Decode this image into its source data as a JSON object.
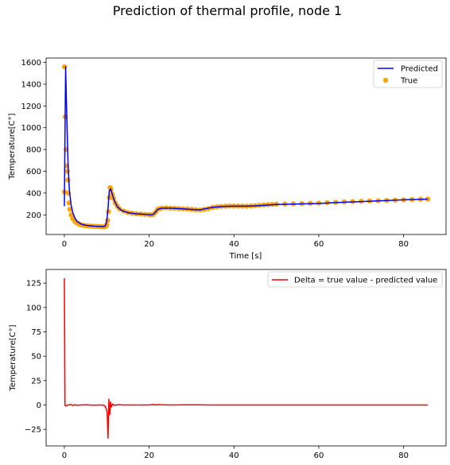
{
  "figure": {
    "suptitle": "Prediction of thermal profile, node 1"
  },
  "chart_data": [
    {
      "type": "line",
      "xlabel": "Time [s]",
      "ylabel": "Temperature[C$^\\circ$]",
      "ylabel_display": "Temperature[C°]",
      "xlim": [
        -4.3,
        90
      ],
      "ylim": [
        20,
        1640
      ],
      "xticks": [
        0,
        20,
        40,
        60,
        80
      ],
      "yticks": [
        200,
        400,
        600,
        800,
        1000,
        1200,
        1400,
        1600
      ],
      "grid": false,
      "legend": "top-right",
      "series": [
        {
          "name": "Predicted",
          "kind": "line",
          "color": "#0000ff",
          "x": [
            0,
            0.3,
            0.6,
            0.9,
            1.2,
            1.6,
            2.0,
            2.5,
            3,
            4,
            5,
            6,
            7,
            8,
            9,
            9.6,
            10.0,
            10.3,
            10.6,
            10.9,
            11.3,
            11.8,
            12.5,
            13.5,
            15,
            17,
            19,
            20.5,
            21.0,
            21.5,
            22.0,
            23,
            25,
            28,
            30,
            32,
            33,
            35,
            38,
            40,
            43,
            45,
            48,
            50,
            55,
            60,
            65,
            70,
            75,
            80,
            85.7
          ],
          "y": [
            280,
            1560,
            1060,
            640,
            420,
            290,
            220,
            170,
            140,
            115,
            105,
            100,
            97,
            95,
            92,
            96,
            140,
            260,
            420,
            440,
            390,
            330,
            275,
            240,
            220,
            210,
            205,
            200,
            205,
            225,
            250,
            262,
            262,
            255,
            250,
            245,
            255,
            270,
            278,
            280,
            280,
            283,
            290,
            295,
            300,
            305,
            315,
            322,
            330,
            338,
            345
          ]
        },
        {
          "name": "True",
          "kind": "scatter",
          "color": "#ffa500",
          "x": [
            0,
            0.05,
            0.2,
            0.4,
            0.55,
            0.7,
            0.85,
            0.95,
            1.1,
            1.3,
            1.6,
            2.0,
            2.5,
            3,
            3.5,
            4,
            4.5,
            5,
            5.5,
            6,
            6.5,
            7,
            7.5,
            8,
            8.5,
            9,
            9.3,
            9.6,
            9.8,
            10.0,
            10.2,
            10.4,
            10.6,
            10.8,
            11.0,
            11.3,
            11.6,
            12.0,
            12.5,
            13,
            14,
            15,
            16,
            17,
            18,
            19,
            20,
            20.5,
            21,
            21.5,
            22,
            22.5,
            23,
            24,
            25,
            26,
            27,
            28,
            29,
            30,
            31,
            32,
            33,
            34,
            35,
            36,
            37,
            38,
            39,
            40,
            41,
            42,
            43,
            44,
            45,
            46,
            47,
            48,
            49,
            50,
            52,
            54,
            56,
            58,
            60,
            62,
            64,
            66,
            68,
            70,
            72,
            74,
            76,
            78,
            80,
            82,
            84,
            85.7
          ],
          "y": [
            410,
            1560,
            1100,
            800,
            650,
            600,
            520,
            400,
            310,
            250,
            200,
            165,
            140,
            125,
            115,
            108,
            104,
            101,
            99,
            97,
            96,
            95,
            94,
            93,
            92,
            91,
            90,
            92,
            96,
            110,
            150,
            230,
            360,
            450,
            430,
            390,
            350,
            310,
            280,
            255,
            235,
            222,
            215,
            210,
            207,
            205,
            202,
            200,
            205,
            225,
            250,
            258,
            262,
            265,
            262,
            260,
            258,
            256,
            253,
            250,
            247,
            245,
            250,
            258,
            268,
            274,
            278,
            280,
            281,
            281,
            281,
            280,
            280,
            282,
            285,
            288,
            291,
            294,
            296,
            298,
            300,
            302,
            304,
            306,
            308,
            312,
            316,
            320,
            322,
            325,
            328,
            330,
            333,
            336,
            338,
            341,
            344,
            345
          ]
        }
      ]
    },
    {
      "type": "line",
      "xlabel": "",
      "ylabel": "Temperature[C$^\\circ$]",
      "ylabel_display": "Temperature[C°]",
      "xlim": [
        -4.3,
        90
      ],
      "ylim": [
        -42,
        139
      ],
      "xticks": [
        0,
        20,
        40,
        60,
        80
      ],
      "yticks": [
        -25,
        0,
        25,
        50,
        75,
        100,
        125
      ],
      "grid": false,
      "legend": "top-right",
      "series": [
        {
          "name": "Delta = true value - predicted value",
          "kind": "line",
          "color": "#ff0000",
          "x": [
            0,
            0.15,
            0.3,
            0.5,
            1,
            1.5,
            2,
            2.5,
            3,
            4,
            5,
            6,
            7,
            8,
            9,
            9.6,
            9.9,
            10.1,
            10.3,
            10.5,
            10.7,
            10.9,
            11.1,
            11.4,
            11.8,
            12.5,
            14,
            16,
            18,
            20,
            21,
            21.5,
            22,
            23,
            25,
            30,
            35,
            40,
            45,
            50,
            55,
            60,
            65,
            70,
            75,
            80,
            85.7
          ],
          "y": [
            130,
            0,
            -1,
            -0.5,
            0,
            0.5,
            -0.5,
            0.3,
            -0.3,
            0,
            0.2,
            0,
            -0.2,
            0,
            0,
            -1,
            -4,
            -8,
            -34,
            6,
            -10,
            3,
            -2,
            1,
            -0.5,
            0.3,
            0,
            0,
            0,
            0,
            0.5,
            0,
            0.4,
            0.2,
            0,
            0.2,
            0,
            0,
            0,
            0,
            0,
            0,
            0,
            0,
            0,
            0,
            0
          ]
        }
      ]
    }
  ]
}
